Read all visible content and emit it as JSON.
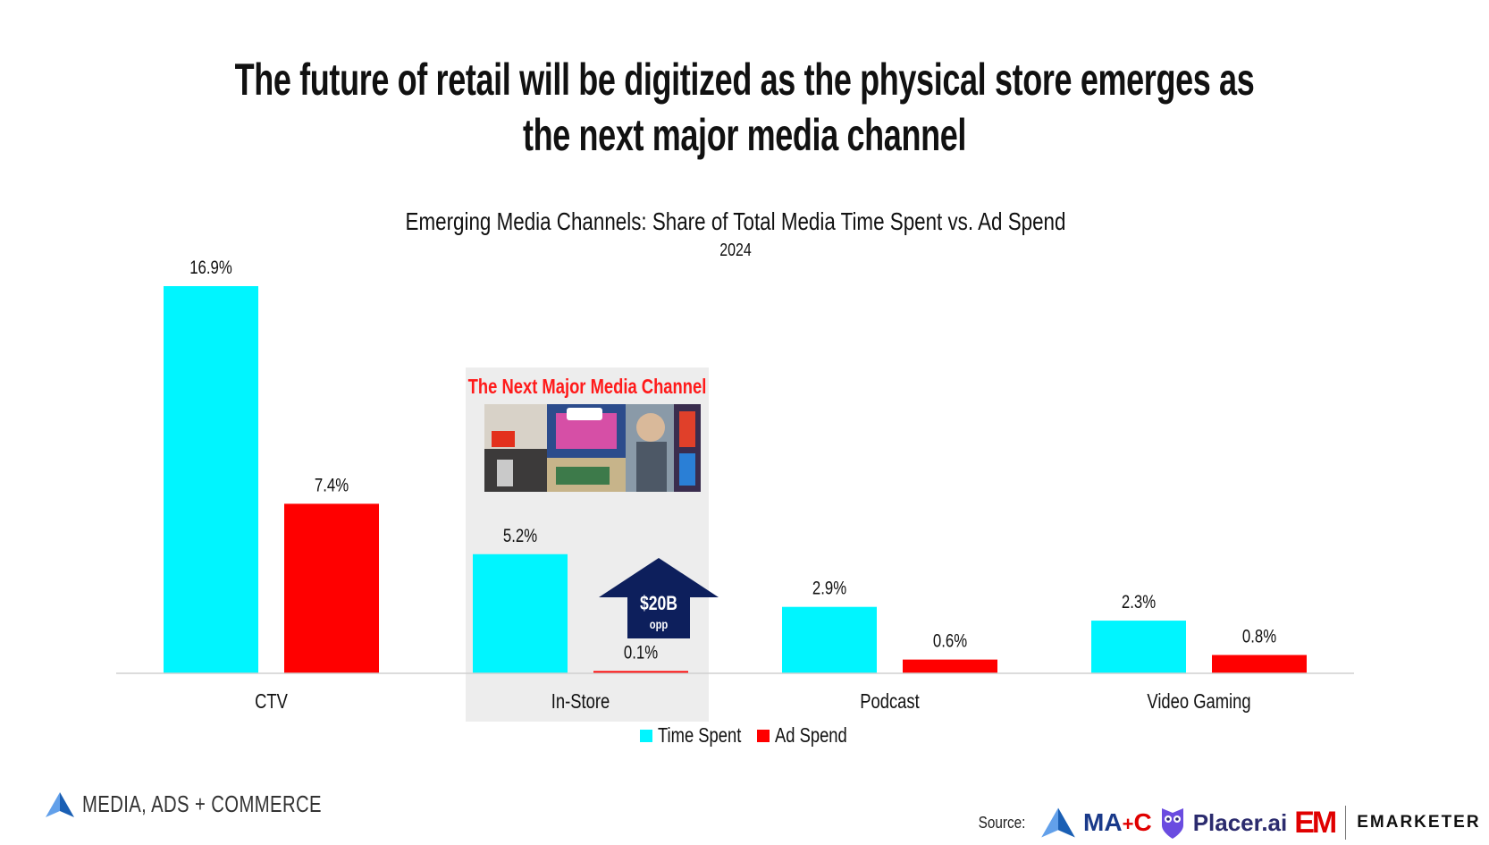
{
  "headline": {
    "line1": "The future of retail will be digitized as the physical store emerges as",
    "line2": "the next major media channel"
  },
  "chart_data": {
    "type": "bar",
    "title": "Emerging Media Channels: Share of Total Media Time Spent vs. Ad Spend",
    "subtitle": "2024",
    "categories": [
      "CTV",
      "In-Store",
      "Podcast",
      "Video Gaming"
    ],
    "series": [
      {
        "name": "Time Spent",
        "color": "#00f5ff",
        "values": [
          16.9,
          5.2,
          2.9,
          2.3
        ],
        "labels": [
          "16.9%",
          "5.2%",
          "2.9%",
          "2.3%"
        ]
      },
      {
        "name": "Ad Spend",
        "color": "#ff0000",
        "values": [
          7.4,
          0.1,
          0.6,
          0.8
        ],
        "labels": [
          "7.4%",
          "0.1%",
          "0.6%",
          "0.8%"
        ]
      }
    ],
    "ylim": [
      0,
      16.9
    ],
    "legend_position": "bottom",
    "annotations": {
      "highlight_category": "In-Store",
      "highlight_title": "The Next Major Media Channel",
      "arrow_value": "$20B",
      "arrow_sub": "opp"
    }
  },
  "colors": {
    "time_spent": "#00f5ff",
    "ad_spend": "#ff0000",
    "highlight_bg": "#ededed",
    "highlight_title": "#ff1a1a",
    "arrow": "#0d1f5c"
  },
  "footer": {
    "brand": "MEDIA, ADS + COMMERCE",
    "source_label": "Source:",
    "sources": {
      "mac_m": "MA",
      "mac_plus": "+",
      "mac_c": "C",
      "placer": "Placer.ai",
      "em_mark": "EM",
      "emarketer": "EMARKETER"
    }
  }
}
